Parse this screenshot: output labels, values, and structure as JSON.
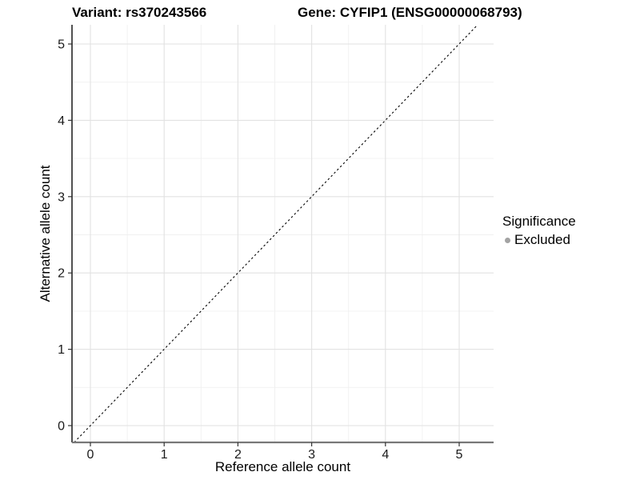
{
  "header": {
    "variant_title": "Variant: rs370243566",
    "gene_title": "Gene: CYFIP1 (ENSG00000068793)"
  },
  "chart_data": {
    "type": "scatter",
    "title": "Variant: rs370243566 — Gene: CYFIP1 (ENSG00000068793)",
    "xlabel": "Reference allele count",
    "ylabel": "Alternative allele count",
    "x_ticks": [
      0,
      1,
      2,
      3,
      4,
      5
    ],
    "y_ticks": [
      0,
      1,
      2,
      3,
      4,
      5
    ],
    "xlim": [
      -0.25,
      5.47
    ],
    "ylim": [
      -0.22,
      5.25
    ],
    "grid": {
      "major": true,
      "minor": true
    },
    "points": [],
    "reference_line": {
      "kind": "identity y=x",
      "style": "dashed",
      "color": "#000000"
    },
    "legend": {
      "title": "Significance",
      "position": "right",
      "items": [
        {
          "label": "Excluded",
          "marker": "circle",
          "color": "#a3a3a3"
        }
      ]
    }
  },
  "colors": {
    "background": "#ffffff",
    "grid_major": "#e2e2e2",
    "grid_minor": "#f0f0f0",
    "axis_line_left": "#262626",
    "axis_line_bottom": "#787878",
    "tick_mark": "#333333",
    "tick_label": "#1a1a1a",
    "reference_line": "#000000",
    "legend_excluded_dot": "#a3a3a3"
  }
}
